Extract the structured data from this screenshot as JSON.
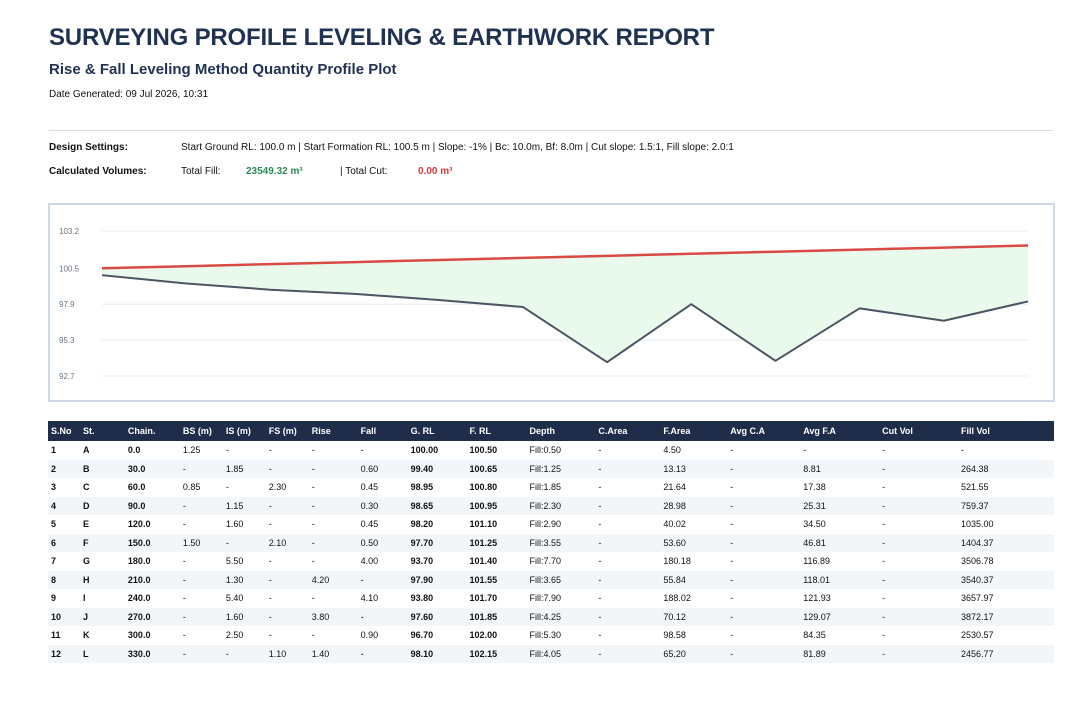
{
  "report": {
    "title": "SURVEYING PROFILE LEVELING & EARTHWORK REPORT",
    "subtitle": "Rise & Fall Leveling Method Quantity Profile Plot",
    "date_generated": "Date Generated: 09 Jul 2026, 10:31"
  },
  "settings": {
    "design_label": "Design Settings:",
    "design_text": "Start Ground RL: 100.0 m | Start Formation RL: 100.5 m | Slope: -1% | Bc: 10.0m, Bf: 8.0m | Cut slope: 1.5:1, Fill slope: 2.0:1",
    "volumes_label": "Calculated Volumes:",
    "total_fill_label": "Total Fill:",
    "total_fill_value": "23549.32 m³",
    "total_cut_label": "| Total Cut:",
    "total_cut_value": "0.00 m³"
  },
  "chart_data": {
    "type": "line",
    "x": [
      0,
      30,
      60,
      90,
      120,
      150,
      180,
      210,
      240,
      270,
      300,
      330
    ],
    "series": [
      {
        "values": [
          100.0,
          99.4,
          98.95,
          98.65,
          98.2,
          97.7,
          93.7,
          97.9,
          93.8,
          97.6,
          96.7,
          98.1
        ],
        "color": "#4b5563"
      },
      {
        "values": [
          100.5,
          100.65,
          100.8,
          100.95,
          101.1,
          101.25,
          101.4,
          101.55,
          101.7,
          101.85,
          102.0,
          102.15
        ],
        "color": "#d94a45"
      }
    ],
    "fill_color": "#e9f9ec",
    "yticks": [
      92.7,
      95.3,
      97.9,
      100.5,
      103.2
    ],
    "grid": true
  },
  "table": {
    "columns": [
      "S.No",
      "St.",
      "Chain.",
      "BS (m)",
      "IS (m)",
      "FS (m)",
      "Rise",
      "Fall",
      "G. RL",
      "F. RL",
      "Depth",
      "C.Area",
      "F.Area",
      "Avg C.A",
      "Avg F.A",
      "Cut Vol",
      "Fill Vol"
    ],
    "rows": [
      [
        "1",
        "A",
        "0.0",
        "1.25",
        "-",
        "-",
        "-",
        "-",
        "100.00",
        "100.50",
        "Fill:0.50",
        "-",
        "4.50",
        "-",
        "-",
        "-",
        "-"
      ],
      [
        "2",
        "B",
        "30.0",
        "-",
        "1.85",
        "-",
        "-",
        "0.60",
        "99.40",
        "100.65",
        "Fill:1.25",
        "-",
        "13.13",
        "-",
        "8.81",
        "-",
        "264.38"
      ],
      [
        "3",
        "C",
        "60.0",
        "0.85",
        "-",
        "2.30",
        "-",
        "0.45",
        "98.95",
        "100.80",
        "Fill:1.85",
        "-",
        "21.64",
        "-",
        "17.38",
        "-",
        "521.55"
      ],
      [
        "4",
        "D",
        "90.0",
        "-",
        "1.15",
        "-",
        "-",
        "0.30",
        "98.65",
        "100.95",
        "Fill:2.30",
        "-",
        "28.98",
        "-",
        "25.31",
        "-",
        "759.37"
      ],
      [
        "5",
        "E",
        "120.0",
        "-",
        "1.60",
        "-",
        "-",
        "0.45",
        "98.20",
        "101.10",
        "Fill:2.90",
        "-",
        "40.02",
        "-",
        "34.50",
        "-",
        "1035.00"
      ],
      [
        "6",
        "F",
        "150.0",
        "1.50",
        "-",
        "2.10",
        "-",
        "0.50",
        "97.70",
        "101.25",
        "Fill:3.55",
        "-",
        "53.60",
        "-",
        "46.81",
        "-",
        "1404.37"
      ],
      [
        "7",
        "G",
        "180.0",
        "-",
        "5.50",
        "-",
        "-",
        "4.00",
        "93.70",
        "101.40",
        "Fill:7.70",
        "-",
        "180.18",
        "-",
        "116.89",
        "-",
        "3506.78"
      ],
      [
        "8",
        "H",
        "210.0",
        "-",
        "1.30",
        "-",
        "4.20",
        "-",
        "97.90",
        "101.55",
        "Fill:3.65",
        "-",
        "55.84",
        "-",
        "118.01",
        "-",
        "3540.37"
      ],
      [
        "9",
        "I",
        "240.0",
        "-",
        "5.40",
        "-",
        "-",
        "4.10",
        "93.80",
        "101.70",
        "Fill:7.90",
        "-",
        "188.02",
        "-",
        "121.93",
        "-",
        "3657.97"
      ],
      [
        "10",
        "J",
        "270.0",
        "-",
        "1.60",
        "-",
        "3.80",
        "-",
        "97.60",
        "101.85",
        "Fill:4.25",
        "-",
        "70.12",
        "-",
        "129.07",
        "-",
        "3872.17"
      ],
      [
        "11",
        "K",
        "300.0",
        "-",
        "2.50",
        "-",
        "-",
        "0.90",
        "96.70",
        "102.00",
        "Fill:5.30",
        "-",
        "98.58",
        "-",
        "84.35",
        "-",
        "2530.57"
      ],
      [
        "12",
        "L",
        "330.0",
        "-",
        "-",
        "1.10",
        "1.40",
        "-",
        "98.10",
        "102.15",
        "Fill:4.05",
        "-",
        "65.20",
        "-",
        "81.89",
        "-",
        "2456.77"
      ]
    ]
  }
}
